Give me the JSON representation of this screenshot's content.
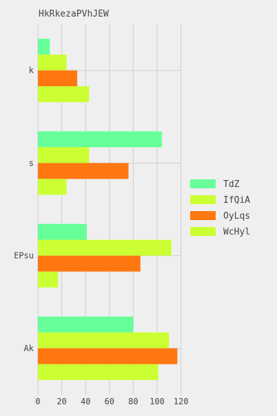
{
  "chart_data": {
    "type": "bar",
    "orientation": "horizontal",
    "title": "HkRkezaPVhJEW",
    "xlabel": "",
    "ylabel": "",
    "xlim": [
      0,
      120
    ],
    "x_ticks": [
      "0",
      "20",
      "40",
      "60",
      "80",
      "100",
      "120"
    ],
    "categories": [
      "k",
      "s",
      "EPsu",
      "Ak"
    ],
    "series": [
      {
        "name": "TdZ",
        "color": "#66ff99",
        "values": [
          10,
          104,
          41,
          80
        ]
      },
      {
        "name": "IfQiA",
        "color": "#ccff33",
        "values": [
          24,
          43,
          112,
          110
        ]
      },
      {
        "name": "OyLqs",
        "color": "#ff7711",
        "values": [
          33,
          76,
          86,
          117
        ]
      },
      {
        "name": "WcHyl",
        "color": "#ccff33",
        "values": [
          43,
          24,
          17,
          101
        ]
      }
    ],
    "grid": true,
    "legend": "right"
  }
}
